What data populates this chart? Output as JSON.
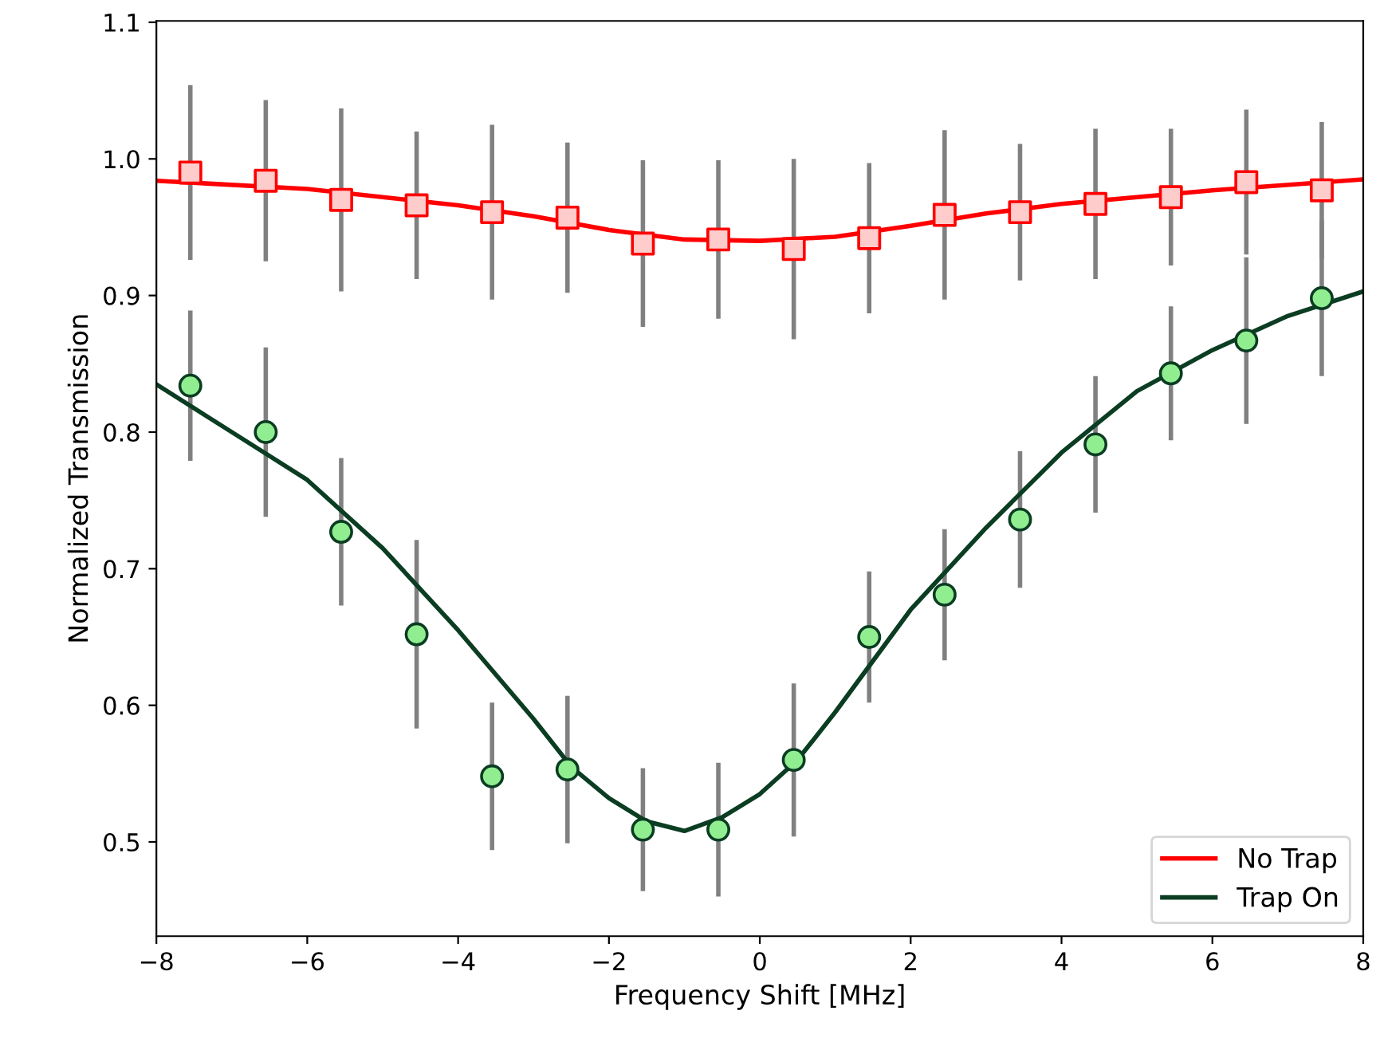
{
  "chart_data": {
    "type": "scatter",
    "xlabel": "Frequency Shift [MHz]",
    "ylabel": "Normalized Transmission",
    "xlim": [
      -8,
      8
    ],
    "ylim": [
      0.431,
      1.101
    ],
    "xticks": [
      {
        "value": -8,
        "label": "−8"
      },
      {
        "value": -6,
        "label": "−6"
      },
      {
        "value": -4,
        "label": "−4"
      },
      {
        "value": -2,
        "label": "−2"
      },
      0,
      2,
      4,
      6,
      8
    ],
    "yticks": [
      0.5,
      0.6,
      0.7,
      0.8,
      0.9,
      {
        "value": 1.0,
        "label": "1.0"
      },
      1.1
    ],
    "grid": false,
    "legend": "bottom right",
    "series": [
      {
        "marker": "square",
        "color": "#ffcccc",
        "x": [
          -7.55,
          -6.55,
          -5.55,
          -4.55,
          -3.55,
          -2.55,
          -1.55,
          -0.55,
          0.45,
          1.45,
          2.45,
          3.45,
          4.45,
          5.45,
          6.45,
          7.45
        ],
        "values": [
          0.99,
          0.984,
          0.97,
          0.966,
          0.961,
          0.957,
          0.938,
          0.941,
          0.934,
          0.942,
          0.959,
          0.961,
          0.967,
          0.972,
          0.983,
          0.977
        ],
        "errors": [
          0.064,
          0.059,
          0.067,
          0.054,
          0.064,
          0.055,
          0.061,
          0.058,
          0.066,
          0.055,
          0.062,
          0.05,
          0.055,
          0.05,
          0.053,
          0.05
        ]
      },
      {
        "type": "line",
        "name": "No Trap",
        "color": "#ff0000",
        "x": [
          -8,
          -6,
          -4,
          -3,
          -2,
          -1,
          0,
          1,
          2,
          3,
          4,
          6,
          8
        ],
        "values": [
          0.984,
          0.978,
          0.966,
          0.958,
          0.948,
          0.941,
          0.94,
          0.943,
          0.951,
          0.96,
          0.967,
          0.977,
          0.985
        ]
      },
      {
        "marker": "circle",
        "color": "#90ee90",
        "x": [
          -7.55,
          -6.55,
          -5.55,
          -4.55,
          -3.55,
          -2.55,
          -1.55,
          -0.55,
          0.45,
          1.45,
          2.45,
          3.45,
          4.45,
          5.45,
          6.45,
          7.45
        ],
        "values": [
          0.834,
          0.8,
          0.727,
          0.652,
          0.548,
          0.553,
          0.509,
          0.509,
          0.56,
          0.65,
          0.681,
          0.736,
          0.791,
          0.843,
          0.867,
          0.898
        ],
        "errors": [
          0.055,
          0.062,
          0.054,
          0.069,
          0.054,
          0.054,
          0.045,
          0.049,
          0.056,
          0.048,
          0.048,
          0.05,
          0.05,
          0.049,
          0.061,
          0.057
        ]
      },
      {
        "type": "line",
        "name": "Trap On",
        "color": "#0b3d22",
        "x": [
          -8,
          -7,
          -6,
          -5,
          -4,
          -3,
          -2.5,
          -2,
          -1.5,
          -1,
          -0.5,
          0,
          0.5,
          1,
          2,
          3,
          4,
          5,
          6,
          7,
          8
        ],
        "values": [
          0.835,
          0.8,
          0.765,
          0.715,
          0.655,
          0.59,
          0.555,
          0.532,
          0.515,
          0.508,
          0.518,
          0.535,
          0.56,
          0.595,
          0.67,
          0.73,
          0.785,
          0.83,
          0.86,
          0.885,
          0.903
        ]
      }
    ]
  }
}
